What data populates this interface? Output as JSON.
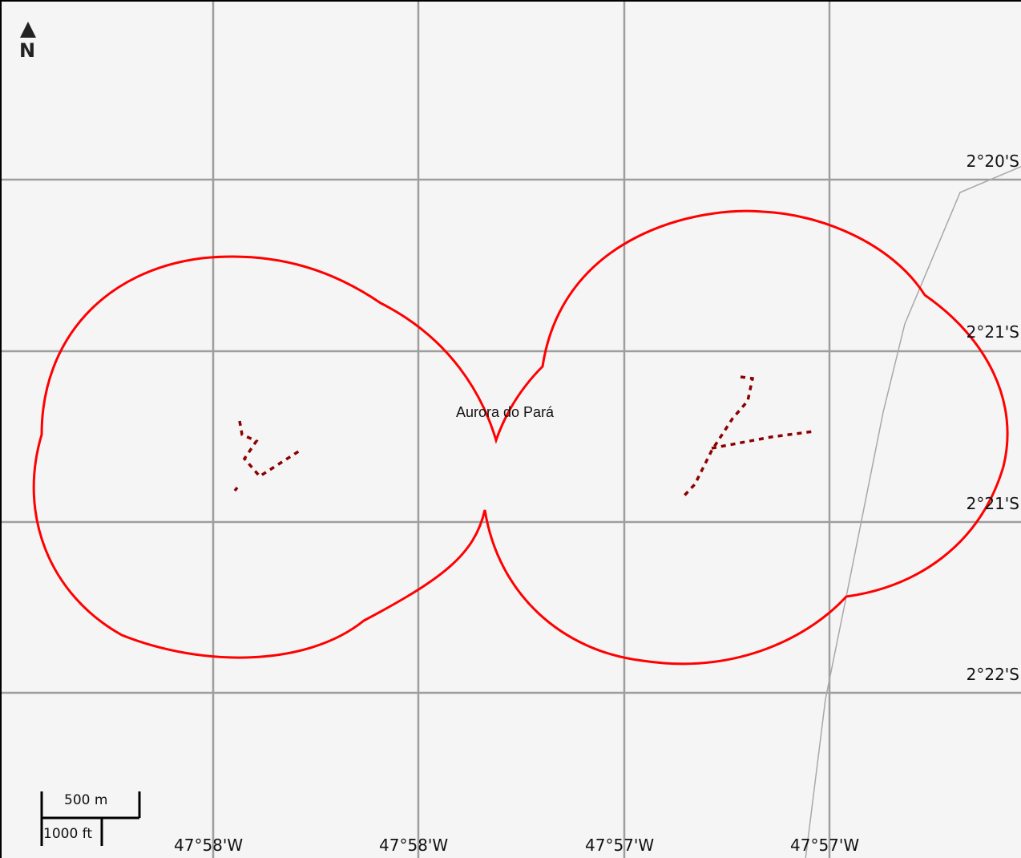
{
  "map": {
    "place_label": "Aurora do Pará",
    "north_label": "N",
    "scale": {
      "metric": "500 m",
      "imperial": "1000 ft"
    },
    "lat_labels": [
      "2°20'S",
      "2°21'S",
      "2°21'S",
      "2°22'S"
    ],
    "lon_labels": [
      "47°58'W",
      "47°58'W",
      "47°57'W",
      "47°57'W"
    ],
    "colors": {
      "background": "#f5f5f5",
      "grid": "#9e9e9e",
      "boundary": "#ff0000",
      "track": "#8b0000",
      "road": "#a8a8a8"
    }
  }
}
